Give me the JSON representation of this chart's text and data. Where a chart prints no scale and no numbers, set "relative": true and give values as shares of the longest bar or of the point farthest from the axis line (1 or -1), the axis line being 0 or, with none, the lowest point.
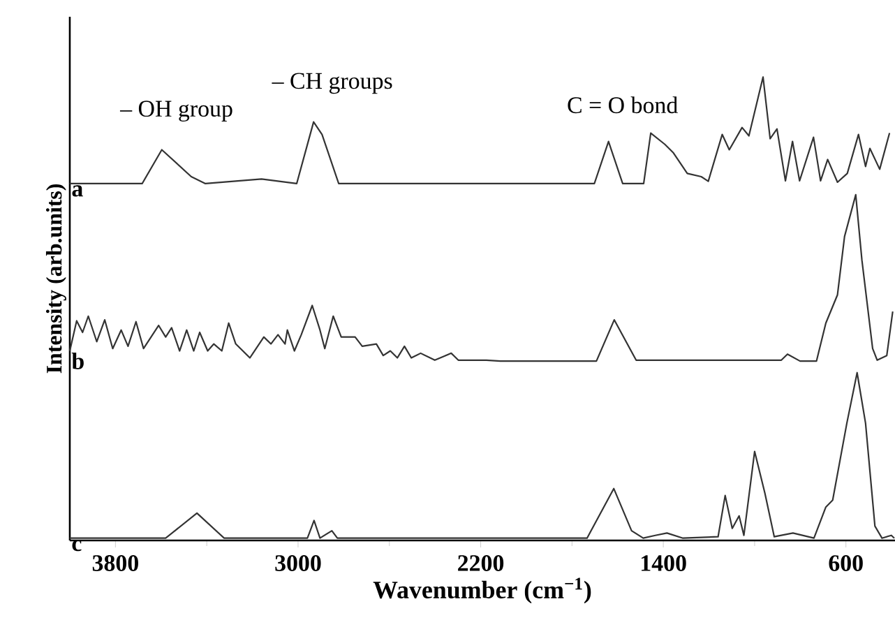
{
  "chart_data": {
    "type": "line",
    "relative": true,
    "marker": "none",
    "line_style": "solid",
    "xlabel": "Wavenumber (cm$^{−1}$)",
    "ylabel": "Intensity (arb.units)",
    "xlim": [
      4000,
      385
    ],
    "xticks": [
      3800,
      3000,
      2200,
      1400,
      600
    ],
    "annotations": [
      {
        "text": "– OH group",
        "x": 3597,
        "y": 0.843
      },
      {
        "text": "– CH groups",
        "x": 2932,
        "y": 0.903
      },
      {
        "text": "C = O bond",
        "x": 1640,
        "y": 0.861
      }
    ],
    "series": [
      {
        "name": "a",
        "color": "#333333",
        "x": [
          4000,
          3683,
          3597,
          3468,
          3406,
          3160,
          3006,
          2932,
          2895,
          2822,
          1702,
          1640,
          1578,
          1486,
          1455,
          1394,
          1357,
          1295,
          1234,
          1203,
          1142,
          1111,
          1055,
          1025,
          963,
          932,
          902,
          865,
          834,
          803,
          742,
          711,
          680,
          637,
          594,
          545,
          514,
          495,
          452,
          409
        ],
        "values": [
          0.77,
          0.77,
          0.843,
          0.785,
          0.77,
          0.78,
          0.77,
          0.903,
          0.876,
          0.77,
          0.77,
          0.861,
          0.77,
          0.77,
          0.879,
          0.855,
          0.837,
          0.792,
          0.785,
          0.775,
          0.876,
          0.843,
          0.891,
          0.873,
          1.0,
          0.867,
          0.888,
          0.776,
          0.861,
          0.776,
          0.87,
          0.776,
          0.822,
          0.773,
          0.792,
          0.876,
          0.807,
          0.846,
          0.801,
          0.879
        ]
      },
      {
        "name": "b",
        "color": "#333333",
        "x": [
          4000,
          3970,
          3944,
          3919,
          3882,
          3847,
          3812,
          3775,
          3745,
          3710,
          3677,
          3611,
          3580,
          3554,
          3519,
          3488,
          3457,
          3431,
          3396,
          3369,
          3334,
          3304,
          3273,
          3211,
          3150,
          3119,
          3088,
          3057,
          3047,
          3016,
          2986,
          2938,
          2904,
          2883,
          2846,
          2811,
          2750,
          2719,
          2657,
          2627,
          2596,
          2565,
          2534,
          2504,
          2463,
          2401,
          2329,
          2298,
          2175,
          2114,
          1693,
          1615,
          1519,
          883,
          856,
          801,
          729,
          688,
          637,
          606,
          557,
          530,
          483,
          463,
          421,
          395
        ],
        "values": [
          0.409,
          0.474,
          0.449,
          0.484,
          0.429,
          0.476,
          0.414,
          0.454,
          0.419,
          0.472,
          0.414,
          0.464,
          0.439,
          0.459,
          0.409,
          0.454,
          0.409,
          0.449,
          0.409,
          0.424,
          0.409,
          0.469,
          0.424,
          0.394,
          0.439,
          0.424,
          0.444,
          0.424,
          0.454,
          0.409,
          0.444,
          0.507,
          0.454,
          0.414,
          0.484,
          0.439,
          0.439,
          0.419,
          0.424,
          0.399,
          0.409,
          0.394,
          0.419,
          0.394,
          0.404,
          0.389,
          0.404,
          0.389,
          0.389,
          0.387,
          0.387,
          0.476,
          0.389,
          0.389,
          0.402,
          0.387,
          0.387,
          0.469,
          0.53,
          0.656,
          0.746,
          0.605,
          0.414,
          0.389,
          0.399,
          0.494
        ]
      },
      {
        "name": "c",
        "color": "#333333",
        "x": [
          4000,
          3580,
          3443,
          3324,
          2959,
          2930,
          2904,
          2852,
          2828,
          1734,
          1617,
          1539,
          1488,
          1435,
          1384,
          1314,
          1160,
          1129,
          1098,
          1068,
          1047,
          1000,
          955,
          914,
          832,
          740,
          688,
          658,
          596,
          551,
          514,
          473,
          442,
          401,
          388
        ],
        "values": [
          0.005,
          0.005,
          0.059,
          0.005,
          0.005,
          0.043,
          0.005,
          0.021,
          0.005,
          0.005,
          0.112,
          0.021,
          0.005,
          0.011,
          0.016,
          0.005,
          0.008,
          0.097,
          0.026,
          0.053,
          0.011,
          0.192,
          0.102,
          0.008,
          0.016,
          0.005,
          0.072,
          0.087,
          0.253,
          0.362,
          0.253,
          0.031,
          0.005,
          0.011,
          0.005
        ]
      }
    ]
  }
}
